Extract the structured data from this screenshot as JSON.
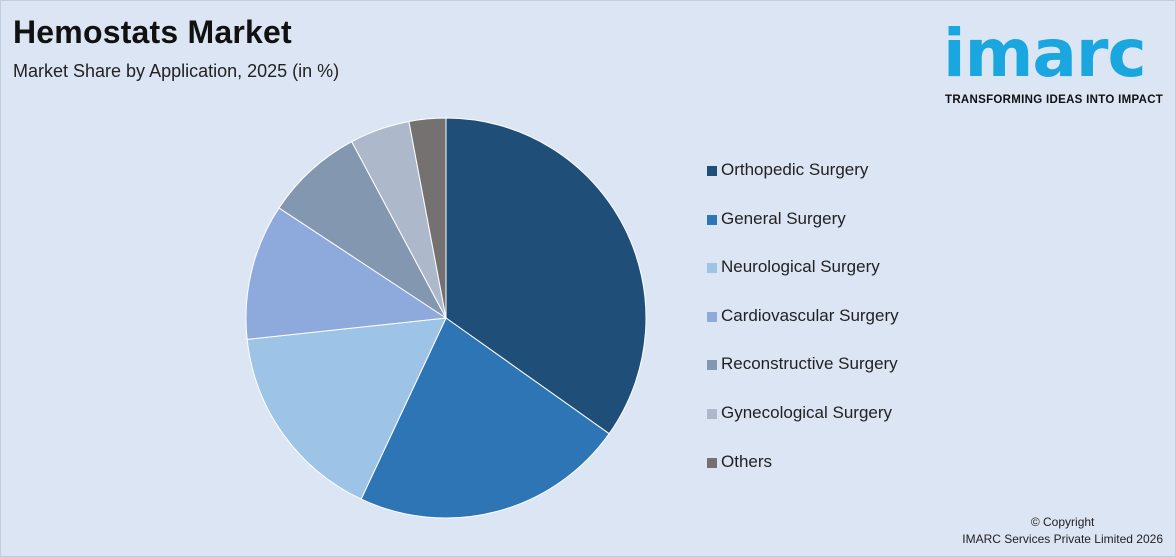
{
  "header": {
    "title": "Hemostats Market",
    "subtitle": "Market Share by Application, 2025 (in %)"
  },
  "logo": {
    "wordmark": "imarc",
    "tagline": "TRANSFORMING IDEAS INTO IMPACT",
    "color": "#1aa7e0"
  },
  "footer": {
    "copyright_line1": "© Copyright",
    "copyright_line2": "IMARC Services Private Limited 2026"
  },
  "chart_data": {
    "type": "pie",
    "title": "Hemostats Market",
    "subtitle": "Market Share by Application, 2025 (in %)",
    "legend_position": "right",
    "categories": [
      "Orthopedic Surgery",
      "General Surgery",
      "Neurological Surgery",
      "Cardiovascular Surgery",
      "Reconstructive Surgery",
      "Gynecological Surgery",
      "Others"
    ],
    "values": [
      35.2,
      22.4,
      16.5,
      11.1,
      8.0,
      4.9,
      3.0
    ],
    "colors": [
      "#1f4e79",
      "#2e75b6",
      "#9dc3e6",
      "#8ea9db",
      "#8497b0",
      "#adb9ca",
      "#757171"
    ]
  }
}
